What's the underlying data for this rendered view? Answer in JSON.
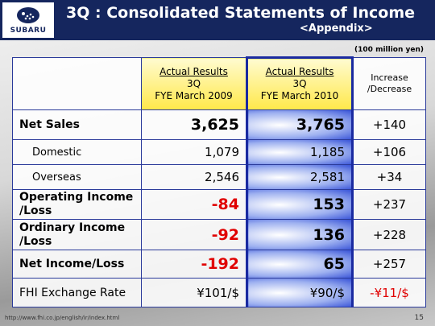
{
  "header": {
    "logo_text": "SUBARU",
    "title": "3Q : Consolidated Statements of Income",
    "subtitle": "<Appendix>"
  },
  "unit": "(100 million yen)",
  "table": {
    "columns": [
      {
        "line1": "Actual Results",
        "line2": "3Q",
        "line3": "FYE March 2009"
      },
      {
        "line1": "Actual Results",
        "line2": "3Q",
        "line3": "FYE March 2010"
      },
      {
        "line1": "Increase",
        "line2": "/Decrease"
      }
    ],
    "rows": [
      {
        "label": "Net Sales",
        "values": [
          "3,625",
          "3,765",
          "+140"
        ]
      },
      {
        "label": "Domestic",
        "values": [
          "1,079",
          "1,185",
          "+106"
        ]
      },
      {
        "label": "Overseas",
        "values": [
          "2,546",
          "2,581",
          "+34"
        ]
      },
      {
        "label": "Operating Income /Loss",
        "values": [
          "-84",
          "153",
          "+237"
        ]
      },
      {
        "label": "Ordinary Income /Loss",
        "values": [
          "-92",
          "136",
          "+228"
        ]
      },
      {
        "label": "Net Income/Loss",
        "values": [
          "-192",
          "65",
          "+257"
        ]
      },
      {
        "label": "FHI Exchange Rate",
        "values": [
          "¥101/$",
          "¥90/$",
          "-¥11/$"
        ]
      }
    ]
  },
  "footer": {
    "url": "http://www.fhi.co.jp/english/ir/index.html",
    "page": "15"
  }
}
